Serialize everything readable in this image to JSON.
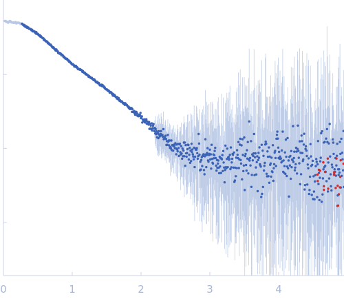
{
  "chart_data": {
    "type": "scatter",
    "title": "",
    "xlabel": "",
    "ylabel": "",
    "xlim": [
      0,
      4.95
    ],
    "ylog": true,
    "ylim_log10": [
      -3.72,
      -0.02
    ],
    "x_ticks": [
      {
        "value": 0,
        "label": "0"
      },
      {
        "value": 1,
        "label": "1"
      },
      {
        "value": 2,
        "label": "2"
      },
      {
        "value": 3,
        "label": "3"
      },
      {
        "value": 4,
        "label": "4"
      }
    ],
    "y_ticks_log10": [
      -1,
      -2,
      -3
    ],
    "grid": false,
    "legend": "none",
    "colors": {
      "axis": "#c8d3e8",
      "tick_label": "#a9b8d6",
      "point": "#3a62b6",
      "excluded_point": "#b9c8e6",
      "outlier_point": "#d42a2a",
      "error_bar": "#aebfe0"
    },
    "series": [
      {
        "role": "excluded_low_q",
        "x_range": [
          0.02,
          0.26
        ],
        "y_log10_start": -0.28,
        "y_log10_end": -0.31
      },
      {
        "role": "measured",
        "x_range": [
          0.27,
          4.95
        ],
        "trend_log10": [
          [
            0.27,
            -0.32
          ],
          [
            0.5,
            -0.45
          ],
          [
            1.0,
            -0.86
          ],
          [
            1.5,
            -1.2
          ],
          [
            2.0,
            -1.58
          ],
          [
            2.5,
            -2.0
          ],
          [
            3.0,
            -2.12
          ],
          [
            3.5,
            -2.18
          ],
          [
            4.0,
            -2.13
          ],
          [
            4.5,
            -2.2
          ],
          [
            4.95,
            -2.12
          ]
        ],
        "scatter_log10": [
          [
            2.5,
            0.1
          ],
          [
            3.0,
            0.25
          ],
          [
            3.5,
            0.35
          ],
          [
            4.0,
            0.42
          ],
          [
            4.95,
            0.5
          ]
        ]
      },
      {
        "role": "outliers",
        "x_range": [
          4.45,
          4.95
        ]
      }
    ]
  }
}
